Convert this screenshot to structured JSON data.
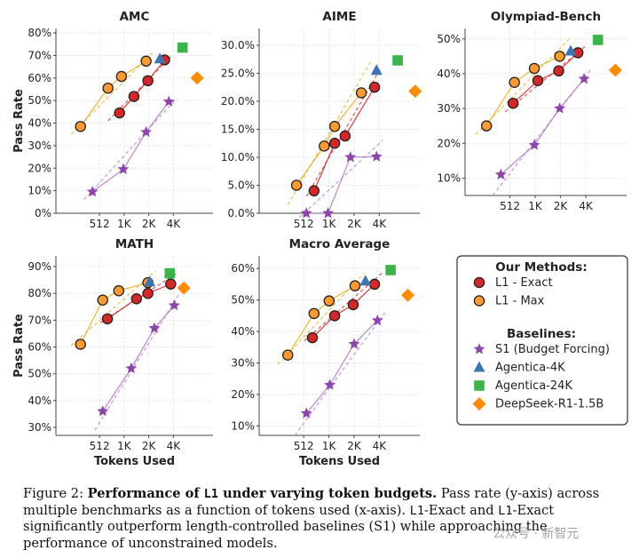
{
  "chart_data": {
    "type": "scatter",
    "xlabel": "Tokens Used",
    "ylabel": "Pass Rate",
    "x_scale": "log2",
    "x_ticks": [
      {
        "value": 512,
        "label": "512"
      },
      {
        "value": 1024,
        "label": "1K"
      },
      {
        "value": 2048,
        "label": "2K"
      },
      {
        "value": 4096,
        "label": "4K"
      }
    ],
    "series_styles": [
      {
        "key": "l1_exact",
        "name": "L1 - Exact",
        "marker": "circle",
        "color": "#d62728",
        "edge": "#222222",
        "line": "#d62728"
      },
      {
        "key": "l1_max",
        "name": "L1 - Max",
        "marker": "circle",
        "color": "#ff9a2e",
        "edge": "#222222",
        "line": "#e8b020"
      },
      {
        "key": "s1",
        "name": "S1 (Budget Forcing)",
        "marker": "star",
        "color": "#8e44ad",
        "line": "#b07cc8"
      },
      {
        "key": "agentica4k",
        "name": "Agentica-4K",
        "marker": "triangle",
        "color": "#3b75b4"
      },
      {
        "key": "agentica24k",
        "name": "Agentica-24K",
        "marker": "square",
        "color": "#3bb54a"
      },
      {
        "key": "deepseek",
        "name": "DeepSeek-R1-1.5B",
        "marker": "diamond",
        "color": "#ff8c00"
      }
    ],
    "panels": [
      {
        "title": "AMC",
        "ylim": [
          0,
          82
        ],
        "yticks": [
          0,
          10,
          20,
          30,
          40,
          50,
          60,
          70,
          80
        ],
        "ytick_suffix": "%",
        "ytick_decimals": 0,
        "show_ylabel": true,
        "show_xlabel": false,
        "series": {
          "l1_exact": [
            [
              900,
              44.5
            ],
            [
              1350,
              51.8
            ],
            [
              2000,
              58.8
            ],
            [
              3200,
              68.0
            ]
          ],
          "l1_max": [
            [
              300,
              38.5
            ],
            [
              650,
              55.5
            ],
            [
              950,
              60.7
            ],
            [
              1900,
              67.5
            ]
          ],
          "s1": [
            [
              420,
              9.5
            ],
            [
              1000,
              19.5
            ],
            [
              1900,
              36.0
            ],
            [
              3600,
              49.5
            ]
          ],
          "agentica4k": [
            [
              2800,
              68.5
            ]
          ],
          "agentica24k": [
            [
              5300,
              73.5
            ]
          ],
          "deepseek": [
            [
              8000,
              60.0
            ]
          ]
        },
        "fits": {
          "l1_exact": [
            [
              650,
              41.0
            ],
            [
              3800,
              69.5
            ]
          ],
          "l1_max": [
            [
              230,
              35.0
            ],
            [
              2400,
              72.0
            ]
          ],
          "s1": [
            [
              330,
              6.0
            ],
            [
              4500,
              51.0
            ]
          ]
        }
      },
      {
        "title": "AIME",
        "ylim": [
          0,
          33
        ],
        "yticks": [
          0,
          5,
          10,
          15,
          20,
          25,
          30
        ],
        "ytick_suffix": "%",
        "ytick_decimals": 1,
        "show_ylabel": false,
        "show_xlabel": false,
        "series": {
          "l1_exact": [
            [
              680,
              4.0
            ],
            [
              1200,
              12.5
            ],
            [
              1600,
              13.8
            ],
            [
              3600,
              22.5
            ]
          ],
          "l1_max": [
            [
              420,
              5.0
            ],
            [
              900,
              12.0
            ],
            [
              1200,
              15.5
            ],
            [
              2500,
              21.5
            ]
          ],
          "s1": [
            [
              550,
              0.0
            ],
            [
              1000,
              0.0
            ],
            [
              1850,
              10.0
            ],
            [
              3800,
              10.1
            ]
          ],
          "agentica4k": [
            [
              3800,
              25.5
            ]
          ],
          "agentica24k": [
            [
              6800,
              27.3
            ]
          ],
          "deepseek": [
            [
              11000,
              21.8
            ]
          ]
        },
        "fits": {
          "l1_exact": [
            [
              550,
              3.0
            ],
            [
              4300,
              26.0
            ]
          ],
          "l1_max": [
            [
              330,
              1.5
            ],
            [
              3200,
              27.0
            ]
          ],
          "s1": [
            [
              400,
              -1.5
            ],
            [
              4500,
              13.0
            ]
          ]
        }
      },
      {
        "title": "Olympiad-Bench",
        "ylim": [
          5,
          53
        ],
        "yticks": [
          10,
          20,
          30,
          40,
          50
        ],
        "ytick_suffix": "%",
        "ytick_decimals": 0,
        "show_ylabel": false,
        "show_xlabel": false,
        "series": {
          "l1_exact": [
            [
              560,
              31.5
            ],
            [
              1100,
              38.0
            ],
            [
              1950,
              40.8
            ],
            [
              3300,
              46.0
            ]
          ],
          "l1_max": [
            [
              270,
              25.0
            ],
            [
              580,
              37.5
            ],
            [
              1000,
              41.5
            ],
            [
              2000,
              45.0
            ]
          ],
          "s1": [
            [
              400,
              11.0
            ],
            [
              1000,
              19.5
            ],
            [
              2000,
              30.0
            ],
            [
              3900,
              38.5
            ]
          ],
          "agentica4k": [
            [
              2700,
              46.5
            ]
          ],
          "agentica24k": [
            [
              5700,
              49.7
            ]
          ],
          "deepseek": [
            [
              9200,
              41.0
            ]
          ]
        },
        "fits": {
          "l1_exact": [
            [
              450,
              29.0
            ],
            [
              4100,
              48.0
            ]
          ],
          "l1_max": [
            [
              200,
              22.5
            ],
            [
              2600,
              50.0
            ]
          ],
          "s1": [
            [
              320,
              5.0
            ],
            [
              4800,
              41.5
            ]
          ]
        }
      },
      {
        "title": "MATH",
        "ylim": [
          27,
          94
        ],
        "yticks": [
          30,
          40,
          50,
          60,
          70,
          80,
          90
        ],
        "ytick_suffix": "%",
        "ytick_decimals": 0,
        "show_ylabel": true,
        "show_xlabel": true,
        "series": {
          "l1_exact": [
            [
              640,
              70.5
            ],
            [
              1450,
              78.0
            ],
            [
              2000,
              80.0
            ],
            [
              3800,
              83.5
            ]
          ],
          "l1_max": [
            [
              300,
              61.0
            ],
            [
              560,
              77.5
            ],
            [
              880,
              81.0
            ],
            [
              2000,
              84.0
            ]
          ],
          "s1": [
            [
              560,
              36.0
            ],
            [
              1250,
              52.0
            ],
            [
              2400,
              67.0
            ],
            [
              4200,
              75.5
            ]
          ],
          "agentica4k": [
            [
              2100,
              84.3
            ]
          ],
          "agentica24k": [
            [
              3700,
              87.5
            ]
          ],
          "deepseek": [
            [
              5500,
              82.0
            ]
          ]
        },
        "fits": {
          "l1_exact": [
            [
              520,
              69.0
            ],
            [
              4500,
              87.5
            ]
          ],
          "l1_max": [
            [
              230,
              60.5
            ],
            [
              2500,
              88.5
            ]
          ],
          "s1": [
            [
              450,
              29.0
            ],
            [
              5000,
              80.5
            ]
          ]
        }
      },
      {
        "title": "Macro Average",
        "ylim": [
          7,
          64
        ],
        "yticks": [
          10,
          20,
          30,
          40,
          50,
          60
        ],
        "ytick_suffix": "%",
        "ytick_decimals": 0,
        "show_ylabel": false,
        "show_xlabel": true,
        "series": {
          "l1_exact": [
            [
              650,
              38.0
            ],
            [
              1200,
              45.0
            ],
            [
              2000,
              48.5
            ],
            [
              3600,
              55.0
            ]
          ],
          "l1_max": [
            [
              330,
              32.5
            ],
            [
              680,
              45.7
            ],
            [
              1030,
              49.7
            ],
            [
              2100,
              54.5
            ]
          ],
          "s1": [
            [
              550,
              14.0
            ],
            [
              1050,
              23.0
            ],
            [
              2050,
              36.0
            ],
            [
              3900,
              43.5
            ]
          ],
          "agentica4k": [
            [
              2800,
              56.0
            ]
          ],
          "agentica24k": [
            [
              5600,
              59.5
            ]
          ],
          "deepseek": [
            [
              9000,
              51.5
            ]
          ]
        },
        "fits": {
          "l1_exact": [
            [
              520,
              37.0
            ],
            [
              4400,
              58.5
            ]
          ],
          "l1_max": [
            [
              250,
              29.5
            ],
            [
              2700,
              58.5
            ]
          ],
          "s1": [
            [
              400,
              7.0
            ],
            [
              4800,
              46.0
            ]
          ]
        }
      }
    ],
    "legend": {
      "position": "bottom-right",
      "groups": [
        {
          "heading": "Our Methods:",
          "items": [
            "l1_exact",
            "l1_max"
          ]
        },
        {
          "heading": "Baselines:",
          "items": [
            "s1",
            "agentica4k",
            "agentica24k",
            "deepseek"
          ]
        }
      ]
    }
  },
  "caption": {
    "label": "Figure 2:",
    "title_pre": "Performance of ",
    "title_mono": "L1",
    "title_post": " under varying token budgets.",
    "body_1": " Pass rate (y-axis) across multiple benchmarks as a function of tokens used (x-axis). ",
    "mono_1": "L1",
    "body_2": "-Exact and ",
    "mono_2": "L1",
    "body_3": "-Exact significantly outperform length-controlled baselines (S1) while approaching the performance of unconstrained models."
  },
  "watermark": "公众号 · 新智元"
}
